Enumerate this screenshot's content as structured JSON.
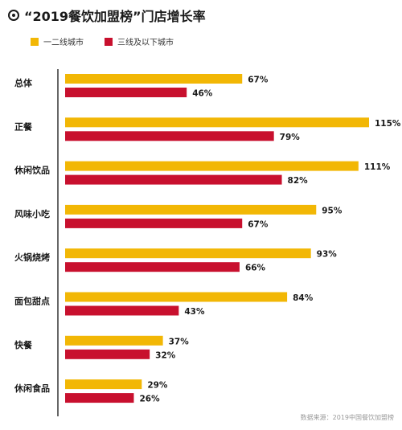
{
  "title": "“2019餐饮加盟榜”门店增长率",
  "source": "数据来源：2019中国餐饮加盟榜",
  "colors": {
    "series_1": "#F2B705",
    "series_2": "#C8102E",
    "axis": "#333333",
    "text": "#1a1a1a"
  },
  "chart_data": {
    "type": "bar",
    "orientation": "horizontal",
    "categories": [
      "总体",
      "正餐",
      "休闲饮品",
      "风味小吃",
      "火锅烧烤",
      "面包甜点",
      "快餐",
      "休闲食品"
    ],
    "series": [
      {
        "name": "一二线城市",
        "values": [
          67,
          115,
          111,
          95,
          93,
          84,
          37,
          29
        ]
      },
      {
        "name": "三线及以下城市",
        "values": [
          46,
          79,
          82,
          67,
          66,
          43,
          32,
          26
        ]
      }
    ],
    "value_suffix": "%",
    "xlim": [
      0,
      115
    ],
    "grid": false,
    "legend_position": "top-left"
  }
}
